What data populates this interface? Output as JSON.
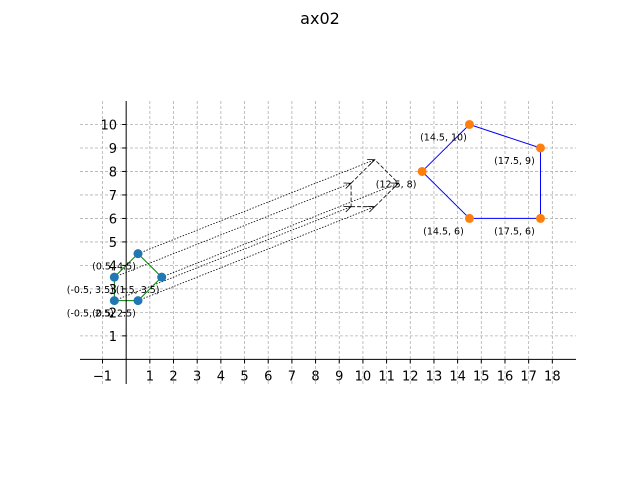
{
  "chart_data": {
    "type": "scatter",
    "title": "ax02",
    "xlim": [
      -1.95,
      19.0
    ],
    "ylim": [
      -1.05,
      11.0
    ],
    "xticks": [
      -1,
      1,
      2,
      3,
      4,
      5,
      6,
      7,
      8,
      9,
      10,
      11,
      12,
      13,
      14,
      15,
      16,
      17,
      18
    ],
    "yticks": [
      1,
      2,
      3,
      4,
      5,
      6,
      7,
      8,
      9,
      10
    ],
    "grid": true,
    "small_polygon": {
      "color": "#1f77b4",
      "edge_color": "green",
      "points": [
        {
          "x": -0.5,
          "y": 2.5,
          "label": "(-0.5, 2.5)"
        },
        {
          "x": 0.5,
          "y": 2.5,
          "label": "(0.5, 2.5)"
        },
        {
          "x": 1.5,
          "y": 3.5,
          "label": "(1.5, 3.5)"
        },
        {
          "x": 0.5,
          "y": 4.5,
          "label": "(0.5, 4.5)"
        },
        {
          "x": -0.5,
          "y": 3.5,
          "label": "(-0.5, 3.5)"
        }
      ]
    },
    "large_polygon": {
      "color": "#ff7f0e",
      "edge_color": "blue",
      "points": [
        {
          "x": 14.5,
          "y": 6,
          "label": "(14.5, 6)"
        },
        {
          "x": 17.5,
          "y": 6,
          "label": "(17.5, 6)"
        },
        {
          "x": 17.5,
          "y": 9,
          "label": "(17.5, 9)"
        },
        {
          "x": 14.5,
          "y": 10,
          "label": "(14.5, 10)"
        },
        {
          "x": 12.5,
          "y": 8,
          "label": "(12.5, 8)"
        }
      ]
    },
    "projected_polygon": {
      "edge_color": "black",
      "points": [
        {
          "x": 9.5,
          "y": 6.5
        },
        {
          "x": 10.5,
          "y": 6.5
        },
        {
          "x": 11.5,
          "y": 7.5
        },
        {
          "x": 10.5,
          "y": 8.5
        },
        {
          "x": 9.5,
          "y": 7.5
        }
      ]
    }
  }
}
